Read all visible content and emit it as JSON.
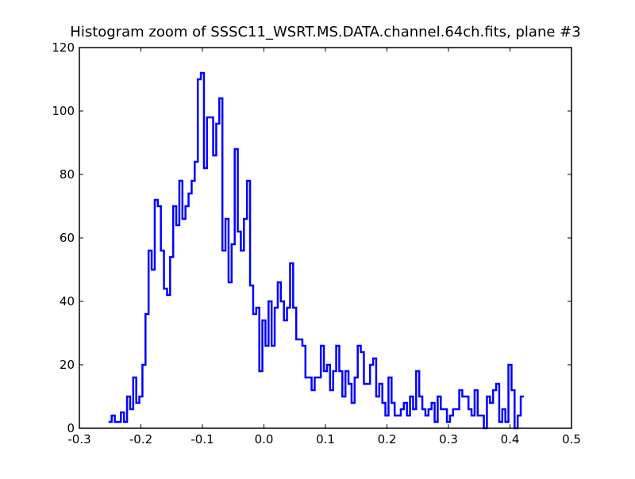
{
  "chart_data": {
    "type": "line",
    "style": "step",
    "title": "Histogram zoom of SSSC11_WSRT.MS.DATA.channel.64ch.fits, plane #3",
    "xlabel": "",
    "ylabel": "",
    "xlim": [
      -0.3,
      0.5
    ],
    "ylim": [
      0,
      120
    ],
    "grid": false,
    "legend": "none",
    "line_color": "#0000ff",
    "xticks": [
      -0.3,
      -0.2,
      -0.1,
      0.0,
      0.1,
      0.2,
      0.3,
      0.4,
      0.5
    ],
    "xtick_labels": [
      "-0.3",
      "-0.2",
      "-0.1",
      "0.0",
      "0.1",
      "0.2",
      "0.3",
      "0.4",
      "0.5"
    ],
    "yticks": [
      0,
      20,
      40,
      60,
      80,
      100,
      120
    ],
    "ytick_labels": [
      "0",
      "20",
      "40",
      "60",
      "80",
      "100",
      "120"
    ],
    "bin_start": -0.2525,
    "bin_width": 0.005,
    "counts": [
      2,
      4,
      2,
      2,
      5,
      2,
      10,
      6,
      16,
      8,
      10,
      20,
      36,
      56,
      50,
      72,
      70,
      56,
      44,
      42,
      54,
      70,
      64,
      78,
      66,
      70,
      74,
      78,
      84,
      110,
      112,
      82,
      98,
      98,
      86,
      96,
      104,
      56,
      66,
      46,
      58,
      88,
      62,
      56,
      66,
      78,
      45,
      36,
      38,
      18,
      34,
      26,
      40,
      26,
      38,
      46,
      40,
      34,
      38,
      52,
      38,
      28,
      28,
      26,
      16,
      16,
      12,
      16,
      16,
      26,
      18,
      20,
      12,
      18,
      26,
      18,
      10,
      18,
      14,
      8,
      16,
      26,
      24,
      14,
      14,
      20,
      22,
      10,
      14,
      8,
      4,
      16,
      8,
      4,
      4,
      6,
      8,
      4,
      10,
      6,
      18,
      10,
      6,
      4,
      6,
      8,
      2,
      10,
      6,
      6,
      2,
      4,
      6,
      6,
      12,
      10,
      10,
      6,
      4,
      12,
      4,
      4,
      0,
      10,
      8,
      12,
      14,
      2,
      6,
      2,
      20,
      12,
      0,
      4,
      10
    ]
  }
}
